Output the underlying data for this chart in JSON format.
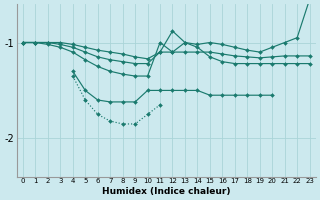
{
  "xlabel": "Humidex (Indice chaleur)",
  "bg_color": "#cce9ee",
  "grid_color": "#aad4d8",
  "line_color": "#1a7a6e",
  "xlim": [
    -0.5,
    23.5
  ],
  "ylim": [
    -2.4,
    -0.6
  ],
  "yticks": [
    -2,
    -1
  ],
  "xticks": [
    0,
    1,
    2,
    3,
    4,
    5,
    6,
    7,
    8,
    9,
    10,
    11,
    12,
    13,
    14,
    15,
    16,
    17,
    18,
    19,
    20,
    21,
    22,
    23
  ],
  "series": [
    {
      "x": [
        0,
        1,
        2,
        3,
        4,
        5,
        6,
        7,
        8,
        9,
        10,
        11,
        12,
        13,
        14,
        15,
        16,
        17,
        18,
        19,
        20,
        21,
        22,
        23
      ],
      "y": [
        -1.0,
        -1.0,
        -1.0,
        -1.0,
        -1.02,
        -1.05,
        -1.08,
        -1.1,
        -1.12,
        -1.15,
        -1.17,
        -1.1,
        -0.88,
        -1.0,
        -1.02,
        -1.0,
        -1.02,
        -1.05,
        -1.08,
        -1.1,
        -1.05,
        -1.0,
        -0.95,
        -0.55
      ],
      "dotted": false
    },
    {
      "x": [
        0,
        1,
        2,
        3,
        4,
        5,
        6,
        7,
        8,
        9,
        10,
        11,
        12,
        13,
        14,
        15,
        16,
        17,
        18,
        19,
        20,
        21,
        22,
        23
      ],
      "y": [
        -1.0,
        -1.0,
        -1.0,
        -1.02,
        -1.05,
        -1.1,
        -1.15,
        -1.18,
        -1.2,
        -1.22,
        -1.22,
        -1.1,
        -1.1,
        -1.1,
        -1.1,
        -1.1,
        -1.12,
        -1.14,
        -1.15,
        -1.16,
        -1.15,
        -1.14,
        -1.14,
        -1.14
      ],
      "dotted": false
    },
    {
      "x": [
        0,
        1,
        2,
        3,
        4,
        5,
        6,
        7,
        8,
        9,
        10,
        11,
        12,
        13,
        14,
        15,
        16,
        17,
        18,
        19,
        20,
        21,
        22,
        23
      ],
      "y": [
        -1.0,
        -1.0,
        -1.02,
        -1.05,
        -1.1,
        -1.18,
        -1.25,
        -1.3,
        -1.33,
        -1.35,
        -1.35,
        -1.0,
        -1.1,
        -1.0,
        -1.05,
        -1.15,
        -1.2,
        -1.22,
        -1.22,
        -1.22,
        -1.22,
        -1.22,
        -1.22,
        -1.22
      ],
      "dotted": false
    },
    {
      "x": [
        4,
        5,
        6,
        7,
        8,
        9,
        10,
        11,
        12,
        13,
        14,
        15,
        16,
        17,
        18,
        19,
        20
      ],
      "y": [
        -1.3,
        -1.5,
        -1.6,
        -1.62,
        -1.62,
        -1.62,
        -1.5,
        -1.5,
        -1.5,
        -1.5,
        -1.5,
        -1.55,
        -1.55,
        -1.55,
        -1.55,
        -1.55,
        -1.55
      ],
      "dotted": false
    },
    {
      "x": [
        4,
        5,
        6,
        7,
        8,
        9,
        10,
        11
      ],
      "y": [
        -1.35,
        -1.6,
        -1.75,
        -1.82,
        -1.85,
        -1.85,
        -1.75,
        -1.65
      ],
      "dotted": true
    }
  ]
}
